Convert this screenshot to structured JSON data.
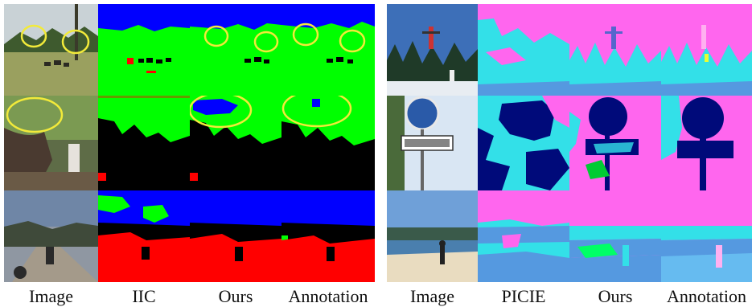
{
  "figure": {
    "left_panel": {
      "captions": [
        "Image",
        "IIC",
        "Ours",
        "Annotation"
      ]
    },
    "right_panel": {
      "captions": [
        "Image",
        "PICIE",
        "Ours",
        "Annotation"
      ]
    }
  }
}
